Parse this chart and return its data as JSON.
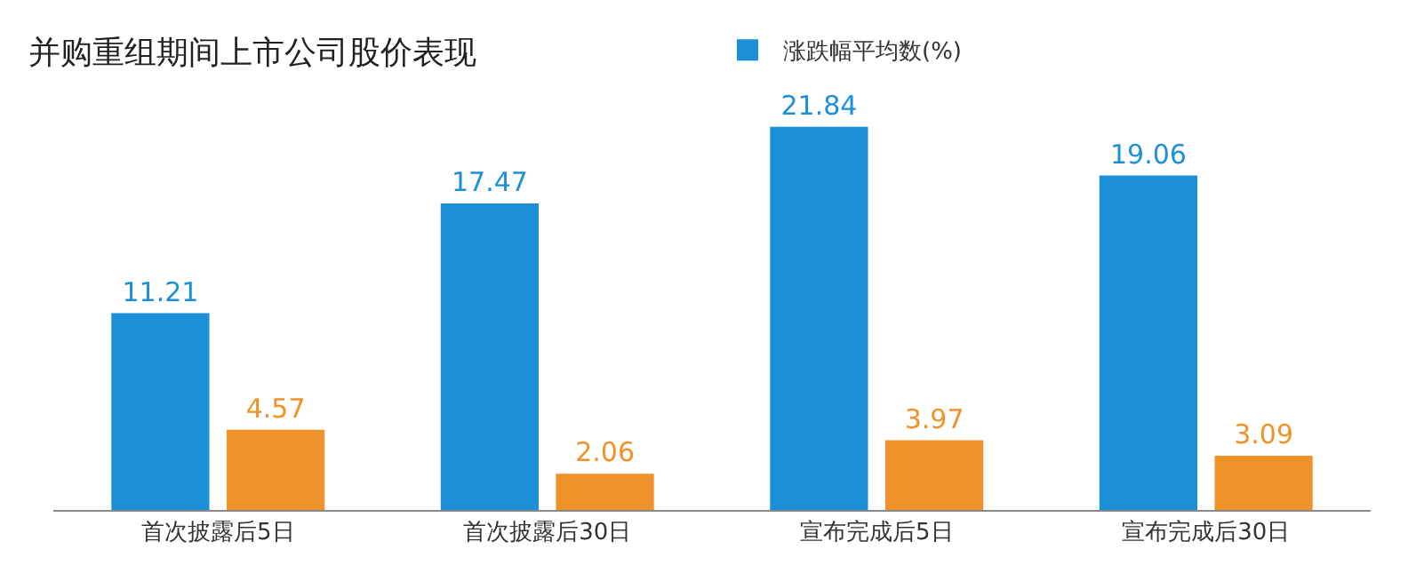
{
  "chart_data": {
    "type": "bar",
    "title": "并购重组期间上市公司股价表现",
    "categories": [
      "首次披露后5日",
      "首次披露后30日",
      "宣布完成后5日",
      "宣布完成后30日"
    ],
    "series": [
      {
        "name": "涨跌幅平均数(%)",
        "color": "#1b8fd8",
        "values": [
          11.21,
          17.47,
          21.84,
          19.06
        ]
      },
      {
        "color": "#f0922a",
        "values": [
          4.57,
          2.06,
          3.97,
          3.09
        ]
      }
    ],
    "data_labels": true,
    "grid": false,
    "legend": "top"
  }
}
